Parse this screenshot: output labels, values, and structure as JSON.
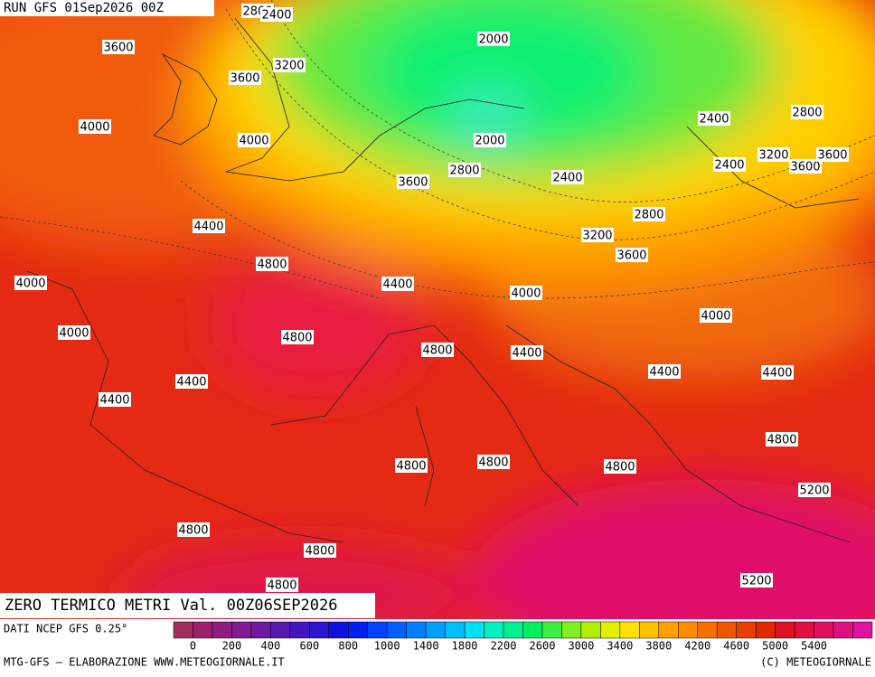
{
  "header": {
    "run": "RUN GFS 01Sep2026 00Z"
  },
  "title": "ZERO TERMICO METRI Val. 00Z06SEP2026",
  "source": "DATI NCEP GFS 0.25°",
  "footer": {
    "left": "MTG-GFS — ELABORAZIONE WWW.METEOGIORNALE.IT",
    "right": "(C) METEOGIORNALE"
  },
  "contour_labels": [
    2800,
    2400,
    2000,
    3600,
    3200,
    3600,
    4000,
    4000,
    2000,
    2400,
    2800,
    2800,
    3600,
    2400,
    3200,
    3600,
    3600,
    2400,
    2800,
    4400,
    3200,
    3600,
    4800,
    4000,
    4400,
    4000,
    4000,
    4000,
    4800,
    4800,
    4400,
    4400,
    4400,
    4400,
    4400,
    4800,
    4800,
    4800,
    4800,
    5200,
    4800,
    4800,
    4800,
    5200
  ],
  "colorbar": {
    "colors": [
      "#a0305a",
      "#a0206e",
      "#901e82",
      "#801c90",
      "#6c1aa0",
      "#5a18b0",
      "#4416c0",
      "#2c14d0",
      "#1010e0",
      "#0020f0",
      "#0040ff",
      "#0060ff",
      "#0080ff",
      "#00a0ff",
      "#00c0ff",
      "#00e0f0",
      "#00f0c0",
      "#00f090",
      "#00f060",
      "#40f040",
      "#80f020",
      "#b0f000",
      "#e0f000",
      "#ffe000",
      "#ffc000",
      "#ffa000",
      "#ff8c00",
      "#f87000",
      "#f05800",
      "#e84000",
      "#e02800",
      "#e01020",
      "#e01040",
      "#e01060",
      "#e01080",
      "#e010a0"
    ],
    "ticks": [
      0,
      200,
      400,
      600,
      800,
      1000,
      1400,
      1800,
      2200,
      2600,
      3000,
      3400,
      3800,
      4200,
      4600,
      5000,
      5400
    ]
  }
}
